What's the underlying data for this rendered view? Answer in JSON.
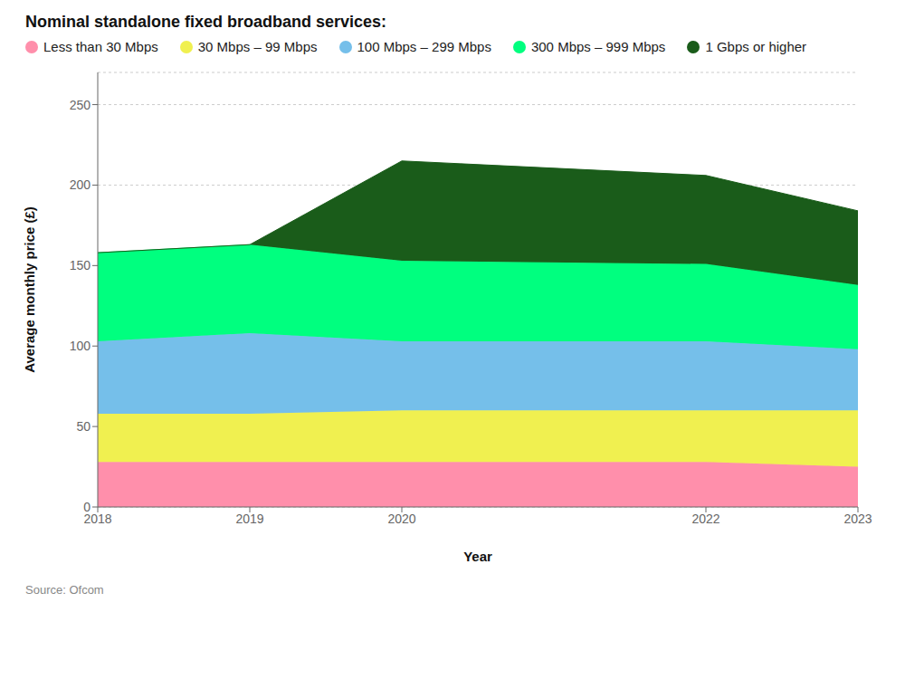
{
  "chart_data": {
    "type": "area",
    "title": "Nominal standalone fixed broadband services:",
    "x": [
      2018,
      2019,
      2020,
      2022,
      2023
    ],
    "series": [
      {
        "name": "Less than 30 Mbps",
        "color": "#FF8FAB",
        "values": [
          28,
          28,
          28,
          28,
          25
        ]
      },
      {
        "name": "30 Mbps – 99 Mbps",
        "color": "#F0F050",
        "values": [
          30,
          30,
          32,
          32,
          35
        ]
      },
      {
        "name": "100 Mbps – 299 Mbps",
        "color": "#75BFEA",
        "values": [
          45,
          50,
          43,
          43,
          38
        ]
      },
      {
        "name": "300 Mbps – 999 Mbps",
        "color": "#00FF7F",
        "values": [
          55,
          55,
          50,
          48,
          40
        ]
      },
      {
        "name": "1 Gbps or higher",
        "color": "#1A5C1A",
        "values": [
          0,
          0,
          62,
          55,
          46
        ]
      }
    ],
    "xlabel": "Year",
    "ylabel": "Average monthly price (£)",
    "xlim": [
      2018,
      2023
    ],
    "xticks": [
      2018,
      2019,
      2020,
      2022,
      2023
    ],
    "ylim": [
      0,
      270
    ],
    "yticks": [
      0,
      50,
      100,
      150,
      200,
      250
    ],
    "grid": true,
    "stacked": true,
    "legend": "top",
    "annotations": [
      "Source: Ofcom"
    ]
  }
}
